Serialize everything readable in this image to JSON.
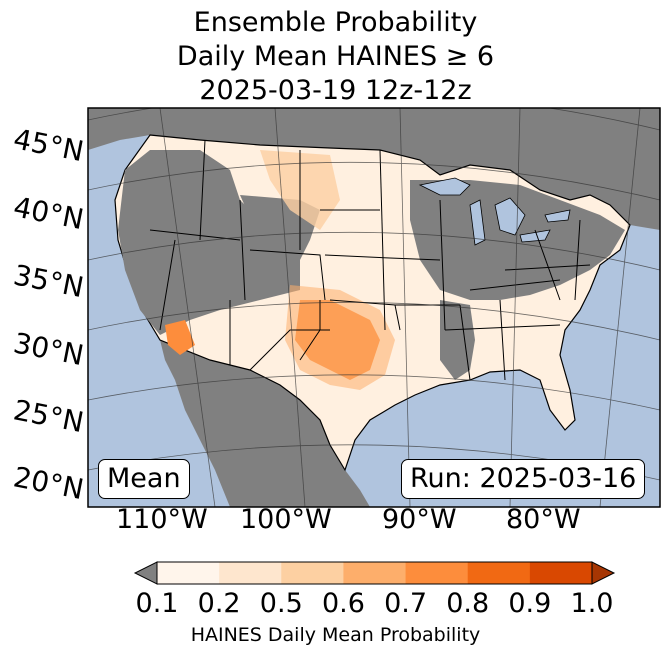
{
  "title": {
    "line1": "Ensemble Probability",
    "line2": "Daily Mean HAINES ≥ 6",
    "line3": "2025-03-19 12z-12z"
  },
  "map": {
    "ocean_color": "#b0c4de",
    "land_masked_color": "#808080",
    "latitude_labels": [
      "45°N",
      "40°N",
      "35°N",
      "30°N",
      "25°N",
      "20°N"
    ],
    "longitude_labels": [
      "110°W",
      "100°W",
      "90°W",
      "80°W"
    ]
  },
  "badges": {
    "left": "Mean",
    "right": "Run: 2025-03-16"
  },
  "colorbar": {
    "label": "HAINES Daily Mean Probability",
    "ticks": [
      "0.1",
      "0.2",
      "0.5",
      "0.6",
      "0.7",
      "0.8",
      "0.9",
      "1.0"
    ],
    "colors": [
      "#fff5eb",
      "#fee6ce",
      "#fdd0a2",
      "#fdae6b",
      "#fd8d3c",
      "#f16913",
      "#d94801",
      "#a63603"
    ],
    "under_color": "#808080"
  }
}
